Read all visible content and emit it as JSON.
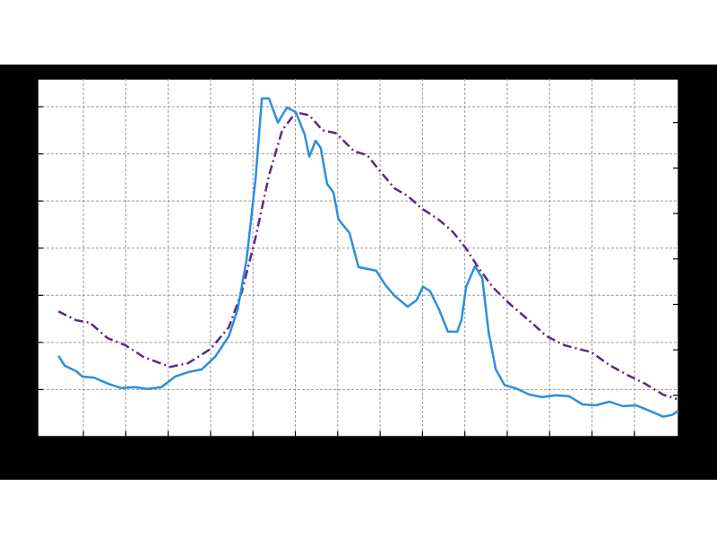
{
  "chart_data": {
    "type": "line",
    "xlim": [
      -0.08,
      15.04
    ],
    "xticks": [
      1,
      2,
      3,
      4,
      5,
      6,
      7,
      8,
      9,
      10,
      11,
      12,
      13,
      14
    ],
    "ylim": [
      0,
      7.59
    ],
    "yticks": [
      1,
      2,
      3,
      4,
      5,
      6,
      7
    ],
    "y2lim": [
      0.09,
      7.96
    ],
    "y2ticks": [
      1,
      2,
      3,
      4,
      5,
      6,
      7
    ],
    "grid": true,
    "series": [
      {
        "color": "#5b2a86",
        "dash": "dash-dot",
        "x": [
          0.41,
          0.83,
          1.15,
          1.57,
          1.99,
          2.42,
          3.05,
          3.47,
          4.0,
          4.43,
          4.74,
          5.06,
          5.38,
          5.69,
          6.01,
          6.33,
          6.64,
          6.96,
          7.38,
          7.7,
          8.02,
          8.34,
          8.65,
          8.97,
          9.39,
          9.71,
          10.03,
          10.34,
          10.66,
          11.08,
          11.51,
          11.93,
          12.35,
          12.99,
          13.41,
          13.83,
          14.26,
          14.68,
          15.0
        ],
        "values": [
          2.66,
          2.47,
          2.42,
          2.09,
          1.94,
          1.69,
          1.48,
          1.56,
          1.86,
          2.32,
          3.08,
          4.22,
          5.55,
          6.5,
          6.88,
          6.82,
          6.5,
          6.44,
          6.06,
          5.97,
          5.61,
          5.27,
          5.11,
          4.85,
          4.6,
          4.35,
          3.99,
          3.56,
          3.17,
          2.8,
          2.47,
          2.13,
          1.94,
          1.79,
          1.52,
          1.31,
          1.12,
          0.89,
          0.8
        ]
      },
      {
        "color": "#2b8fe0",
        "axis": "y2",
        "x": [
          0.41,
          0.56,
          0.83,
          0.98,
          1.25,
          1.57,
          1.89,
          2.2,
          2.52,
          2.84,
          3.16,
          3.47,
          3.79,
          4.11,
          4.43,
          4.64,
          4.85,
          5.06,
          5.21,
          5.38,
          5.59,
          5.8,
          6.01,
          6.22,
          6.33,
          6.48,
          6.6,
          6.75,
          6.9,
          7.02,
          7.28,
          7.49,
          7.7,
          7.91,
          8.12,
          8.34,
          8.65,
          8.86,
          9.01,
          9.18,
          9.39,
          9.6,
          9.82,
          9.92,
          10.03,
          10.24,
          10.41,
          10.56,
          10.73,
          10.94,
          11.19,
          11.51,
          11.82,
          12.14,
          12.46,
          12.78,
          13.09,
          13.41,
          13.73,
          14.04,
          14.36,
          14.68,
          14.89,
          15.04
        ],
        "values": [
          1.87,
          1.65,
          1.53,
          1.41,
          1.39,
          1.26,
          1.16,
          1.18,
          1.14,
          1.18,
          1.41,
          1.51,
          1.57,
          1.85,
          2.3,
          2.89,
          3.98,
          5.75,
          7.53,
          7.53,
          7.0,
          7.33,
          7.23,
          6.74,
          6.25,
          6.6,
          6.44,
          5.65,
          5.46,
          4.87,
          4.57,
          3.82,
          3.78,
          3.74,
          3.43,
          3.19,
          2.95,
          3.09,
          3.39,
          3.29,
          2.89,
          2.4,
          2.4,
          2.66,
          3.39,
          3.84,
          3.58,
          2.4,
          1.57,
          1.22,
          1.16,
          1.02,
          0.96,
          1.0,
          0.98,
          0.8,
          0.78,
          0.86,
          0.76,
          0.78,
          0.66,
          0.53,
          0.57,
          0.66
        ]
      }
    ]
  }
}
